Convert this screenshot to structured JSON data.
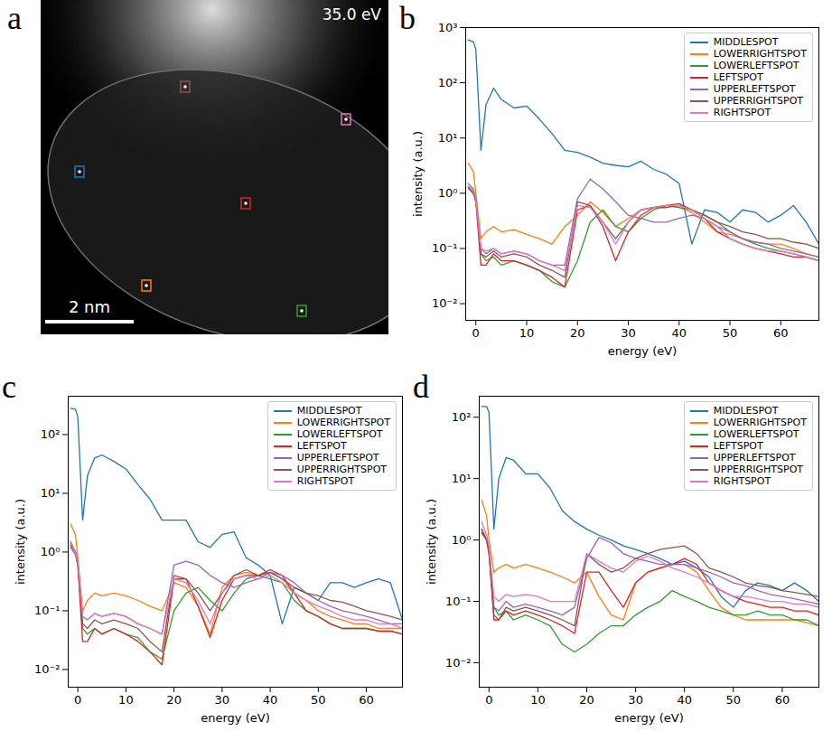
{
  "image_panel": {
    "panel_label": "a",
    "energy": "35.0 eV",
    "scale_bar": "2 nm"
  },
  "chart_data": [
    {
      "panel_label": "b",
      "type": "line",
      "log": "y",
      "legend": "upper right",
      "xlabel": "energy (eV)",
      "ylabel": "intensity (a.u.)",
      "xlim": [
        -2,
        67.5
      ],
      "xticks": [
        0,
        10,
        20,
        30,
        40,
        50,
        60
      ],
      "ylim": [
        0.005,
        1000
      ],
      "yticks": [
        {
          "value": 0.01,
          "label": "10⁻²"
        },
        {
          "value": 0.1,
          "label": "10⁻¹"
        },
        {
          "value": 1,
          "label": "10⁰"
        },
        {
          "value": 10,
          "label": "10¹"
        },
        {
          "value": 100,
          "label": "10²"
        },
        {
          "value": 1000,
          "label": "10³"
        }
      ],
      "x": [
        -1.5,
        -0.5,
        0,
        1,
        2,
        3.5,
        5,
        7.5,
        10,
        12.5,
        15,
        17.5,
        20,
        22.5,
        25,
        27.5,
        30,
        32.5,
        35,
        37.5,
        40,
        42.5,
        45,
        47.5,
        50,
        52.5,
        55,
        57.5,
        60,
        62.5,
        65,
        67.5
      ],
      "series": [
        {
          "name": "MIDDLESPOT",
          "color": "#1f77b4",
          "values": [
            600,
            550,
            400,
            6,
            40,
            80,
            50,
            35,
            38,
            22,
            12,
            6,
            5.5,
            4.5,
            3.5,
            3.2,
            3,
            3.8,
            2.7,
            2.2,
            1.5,
            0.12,
            0.5,
            0.45,
            0.3,
            0.5,
            0.45,
            0.3,
            0.4,
            0.6,
            0.3,
            0.12
          ]
        },
        {
          "name": "LOWERRIGHTSPOT",
          "color": "#ff7f0e",
          "values": [
            3.5,
            2.5,
            1,
            0.15,
            0.2,
            0.25,
            0.2,
            0.22,
            0.18,
            0.15,
            0.12,
            0.25,
            0.4,
            0.7,
            0.45,
            0.25,
            0.35,
            0.5,
            0.55,
            0.6,
            0.55,
            0.45,
            0.3,
            0.2,
            0.18,
            0.15,
            0.13,
            0.12,
            0.12,
            0.1,
            0.08,
            0.07
          ]
        },
        {
          "name": "LOWERLEFTSPOT",
          "color": "#2ca02c",
          "values": [
            1.5,
            1.2,
            0.8,
            0.08,
            0.06,
            0.07,
            0.05,
            0.06,
            0.05,
            0.04,
            0.025,
            0.02,
            0.06,
            0.3,
            0.5,
            0.25,
            0.2,
            0.35,
            0.5,
            0.6,
            0.55,
            0.5,
            0.4,
            0.3,
            0.2,
            0.15,
            0.12,
            0.1,
            0.09,
            0.08,
            0.07,
            0.06
          ]
        },
        {
          "name": "LEFTSPOT",
          "color": "#d62728",
          "values": [
            1.3,
            1,
            0.7,
            0.05,
            0.05,
            0.08,
            0.06,
            0.06,
            0.05,
            0.04,
            0.03,
            0.02,
            0.5,
            0.6,
            0.25,
            0.06,
            0.2,
            0.4,
            0.55,
            0.6,
            0.65,
            0.5,
            0.35,
            0.2,
            0.15,
            0.12,
            0.1,
            0.09,
            0.08,
            0.07,
            0.07,
            0.06
          ]
        },
        {
          "name": "UPPERLEFTSPOT",
          "color": "#9467bd",
          "values": [
            1.2,
            1,
            0.7,
            0.1,
            0.08,
            0.1,
            0.08,
            0.09,
            0.08,
            0.06,
            0.05,
            0.05,
            0.8,
            1.8,
            1.2,
            0.7,
            0.4,
            0.35,
            0.3,
            0.3,
            0.35,
            0.4,
            0.35,
            0.25,
            0.2,
            0.15,
            0.13,
            0.12,
            0.1,
            0.09,
            0.08,
            0.07
          ]
        },
        {
          "name": "UPPERRIGHTSPOT",
          "color": "#8c564b",
          "values": [
            1.3,
            1,
            0.8,
            0.08,
            0.07,
            0.09,
            0.07,
            0.08,
            0.07,
            0.05,
            0.04,
            0.03,
            0.7,
            0.6,
            0.3,
            0.15,
            0.3,
            0.5,
            0.55,
            0.55,
            0.6,
            0.5,
            0.4,
            0.3,
            0.25,
            0.2,
            0.18,
            0.15,
            0.15,
            0.13,
            0.12,
            0.1
          ]
        },
        {
          "name": "RIGHTSPOT",
          "color": "#e377c2",
          "values": [
            1.5,
            1.1,
            0.8,
            0.1,
            0.09,
            0.1,
            0.08,
            0.09,
            0.08,
            0.06,
            0.05,
            0.04,
            0.6,
            0.55,
            0.3,
            0.12,
            0.3,
            0.5,
            0.55,
            0.6,
            0.6,
            0.5,
            0.35,
            0.25,
            0.15,
            0.12,
            0.1,
            0.09,
            0.09,
            0.08,
            0.07,
            0.06
          ]
        }
      ]
    },
    {
      "panel_label": "c",
      "type": "line",
      "log": "y",
      "legend": "upper right",
      "xlabel": "energy (eV)",
      "ylabel": "intensity (a.u.)",
      "xlim": [
        -2,
        67.5
      ],
      "xticks": [
        0,
        10,
        20,
        30,
        40,
        50,
        60
      ],
      "ylim": [
        0.005,
        450
      ],
      "yticks": [
        {
          "value": 0.01,
          "label": "10⁻²"
        },
        {
          "value": 0.1,
          "label": "10⁻¹"
        },
        {
          "value": 1,
          "label": "10⁰"
        },
        {
          "value": 10,
          "label": "10¹"
        },
        {
          "value": 100,
          "label": "10²"
        }
      ],
      "x": [
        -1.5,
        -0.5,
        0,
        1,
        2,
        3.5,
        5,
        7.5,
        10,
        12.5,
        15,
        17.5,
        20,
        22.5,
        25,
        27.5,
        30,
        32.5,
        35,
        37.5,
        40,
        42.5,
        45,
        47.5,
        50,
        52.5,
        55,
        57.5,
        60,
        62.5,
        65,
        67.5
      ],
      "series": [
        {
          "name": "MIDDLESPOT",
          "color": "#1f77b4",
          "values": [
            280,
            270,
            200,
            3.5,
            20,
            40,
            45,
            35,
            26,
            14,
            8,
            3.5,
            3.5,
            3.5,
            1.5,
            1.2,
            2,
            2.2,
            0.8,
            0.6,
            0.4,
            0.06,
            0.25,
            0.2,
            0.15,
            0.3,
            0.3,
            0.25,
            0.3,
            0.35,
            0.3,
            0.07
          ]
        },
        {
          "name": "LOWERRIGHTSPOT",
          "color": "#ff7f0e",
          "values": [
            3,
            2,
            0.8,
            0.1,
            0.15,
            0.2,
            0.18,
            0.2,
            0.18,
            0.15,
            0.12,
            0.1,
            0.3,
            0.25,
            0.12,
            0.04,
            0.25,
            0.4,
            0.45,
            0.4,
            0.45,
            0.35,
            0.2,
            0.15,
            0.1,
            0.08,
            0.07,
            0.06,
            0.06,
            0.05,
            0.05,
            0.05
          ]
        },
        {
          "name": "LOWERLEFTSPOT",
          "color": "#2ca02c",
          "values": [
            1.5,
            1,
            0.6,
            0.05,
            0.04,
            0.05,
            0.04,
            0.05,
            0.04,
            0.035,
            0.02,
            0.015,
            0.1,
            0.2,
            0.25,
            0.15,
            0.1,
            0.2,
            0.35,
            0.4,
            0.35,
            0.3,
            0.15,
            0.1,
            0.08,
            0.06,
            0.05,
            0.05,
            0.05,
            0.045,
            0.045,
            0.04
          ]
        },
        {
          "name": "LEFTSPOT",
          "color": "#d62728",
          "values": [
            1.3,
            1,
            0.6,
            0.03,
            0.03,
            0.05,
            0.04,
            0.05,
            0.04,
            0.03,
            0.02,
            0.012,
            0.35,
            0.35,
            0.12,
            0.035,
            0.15,
            0.35,
            0.4,
            0.4,
            0.5,
            0.4,
            0.2,
            0.1,
            0.08,
            0.06,
            0.05,
            0.05,
            0.05,
            0.045,
            0.045,
            0.04
          ]
        },
        {
          "name": "UPPERLEFTSPOT",
          "color": "#9467bd",
          "values": [
            1.2,
            0.9,
            0.6,
            0.08,
            0.07,
            0.09,
            0.08,
            0.09,
            0.08,
            0.06,
            0.05,
            0.04,
            0.6,
            0.7,
            0.6,
            0.4,
            0.3,
            0.25,
            0.3,
            0.35,
            0.45,
            0.4,
            0.3,
            0.2,
            0.15,
            0.12,
            0.1,
            0.09,
            0.08,
            0.07,
            0.06,
            0.06
          ]
        },
        {
          "name": "UPPERRIGHTSPOT",
          "color": "#8c564b",
          "values": [
            1.3,
            1,
            0.7,
            0.06,
            0.05,
            0.07,
            0.06,
            0.07,
            0.06,
            0.05,
            0.03,
            0.02,
            0.4,
            0.35,
            0.2,
            0.1,
            0.2,
            0.4,
            0.5,
            0.4,
            0.45,
            0.35,
            0.25,
            0.2,
            0.18,
            0.15,
            0.14,
            0.12,
            0.1,
            0.09,
            0.08,
            0.07
          ]
        },
        {
          "name": "RIGHTSPOT",
          "color": "#e377c2",
          "values": [
            1.4,
            1,
            0.7,
            0.08,
            0.07,
            0.09,
            0.08,
            0.09,
            0.08,
            0.06,
            0.05,
            0.04,
            0.35,
            0.3,
            0.15,
            0.06,
            0.2,
            0.35,
            0.4,
            0.35,
            0.4,
            0.3,
            0.2,
            0.15,
            0.12,
            0.1,
            0.08,
            0.07,
            0.07,
            0.06,
            0.06,
            0.05
          ]
        }
      ]
    },
    {
      "panel_label": "d",
      "type": "line",
      "log": "y",
      "legend": "upper right",
      "xlabel": "energy (eV)",
      "ylabel": "intensity (a.u.)",
      "xlim": [
        -2,
        67.5
      ],
      "xticks": [
        0,
        10,
        20,
        30,
        40,
        50,
        60
      ],
      "ylim": [
        0.004,
        220
      ],
      "yticks": [
        {
          "value": 0.01,
          "label": "10⁻²"
        },
        {
          "value": 0.1,
          "label": "10⁻¹"
        },
        {
          "value": 1,
          "label": "10⁰"
        },
        {
          "value": 10,
          "label": "10¹"
        },
        {
          "value": 100,
          "label": "10²"
        }
      ],
      "x": [
        -1.5,
        -0.5,
        0,
        1,
        2,
        3.5,
        5,
        7.5,
        10,
        12.5,
        15,
        17.5,
        20,
        22.5,
        25,
        27.5,
        30,
        32.5,
        35,
        37.5,
        40,
        42.5,
        45,
        47.5,
        50,
        52.5,
        55,
        57.5,
        60,
        62.5,
        65,
        67.5
      ],
      "series": [
        {
          "name": "MIDDLESPOT",
          "color": "#1f77b4",
          "values": [
            150,
            150,
            120,
            1.5,
            10,
            22,
            20,
            12,
            12,
            7,
            3,
            2,
            1.5,
            1.2,
            1,
            0.8,
            0.7,
            0.6,
            0.5,
            0.4,
            0.45,
            0.35,
            0.25,
            0.12,
            0.08,
            0.15,
            0.2,
            0.18,
            0.15,
            0.2,
            0.15,
            0.1
          ]
        },
        {
          "name": "LOWERRIGHTSPOT",
          "color": "#ff7f0e",
          "values": [
            4.5,
            2.5,
            1,
            0.3,
            0.35,
            0.4,
            0.35,
            0.4,
            0.35,
            0.3,
            0.25,
            0.2,
            0.3,
            0.12,
            0.06,
            0.05,
            0.2,
            0.3,
            0.35,
            0.4,
            0.4,
            0.3,
            0.15,
            0.08,
            0.06,
            0.05,
            0.05,
            0.05,
            0.05,
            0.05,
            0.045,
            0.04
          ]
        },
        {
          "name": "LOWERLEFTSPOT",
          "color": "#2ca02c",
          "values": [
            1.5,
            1,
            0.6,
            0.08,
            0.06,
            0.07,
            0.05,
            0.06,
            0.05,
            0.04,
            0.02,
            0.015,
            0.02,
            0.03,
            0.04,
            0.04,
            0.06,
            0.08,
            0.1,
            0.15,
            0.12,
            0.1,
            0.08,
            0.07,
            0.06,
            0.06,
            0.07,
            0.06,
            0.06,
            0.05,
            0.05,
            0.04
          ]
        },
        {
          "name": "LEFTSPOT",
          "color": "#d62728",
          "values": [
            1.5,
            1,
            0.6,
            0.05,
            0.05,
            0.07,
            0.06,
            0.07,
            0.06,
            0.05,
            0.04,
            0.03,
            0.3,
            0.3,
            0.15,
            0.08,
            0.2,
            0.3,
            0.35,
            0.4,
            0.5,
            0.4,
            0.2,
            0.15,
            0.12,
            0.1,
            0.09,
            0.08,
            0.08,
            0.07,
            0.07,
            0.06
          ]
        },
        {
          "name": "UPPERLEFTSPOT",
          "color": "#9467bd",
          "values": [
            1.3,
            1,
            0.7,
            0.08,
            0.07,
            0.1,
            0.08,
            0.09,
            0.08,
            0.07,
            0.06,
            0.08,
            0.5,
            1.1,
            0.9,
            0.6,
            0.5,
            0.45,
            0.4,
            0.4,
            0.4,
            0.35,
            0.3,
            0.25,
            0.2,
            0.18,
            0.15,
            0.13,
            0.12,
            0.11,
            0.1,
            0.09
          ]
        },
        {
          "name": "UPPERRIGHTSPOT",
          "color": "#8c564b",
          "values": [
            1.3,
            1,
            0.7,
            0.06,
            0.05,
            0.08,
            0.07,
            0.08,
            0.07,
            0.06,
            0.05,
            0.04,
            0.6,
            0.4,
            0.3,
            0.35,
            0.5,
            0.6,
            0.7,
            0.75,
            0.8,
            0.6,
            0.35,
            0.3,
            0.25,
            0.2,
            0.18,
            0.17,
            0.15,
            0.14,
            0.13,
            0.12
          ]
        },
        {
          "name": "RIGHTSPOT",
          "color": "#e377c2",
          "values": [
            2,
            1.2,
            0.8,
            0.12,
            0.1,
            0.13,
            0.12,
            0.13,
            0.12,
            0.1,
            0.1,
            0.1,
            0.6,
            0.45,
            0.35,
            0.3,
            0.45,
            0.55,
            0.45,
            0.35,
            0.3,
            0.25,
            0.2,
            0.15,
            0.12,
            0.12,
            0.11,
            0.1,
            0.1,
            0.09,
            0.09,
            0.08
          ]
        }
      ]
    }
  ]
}
